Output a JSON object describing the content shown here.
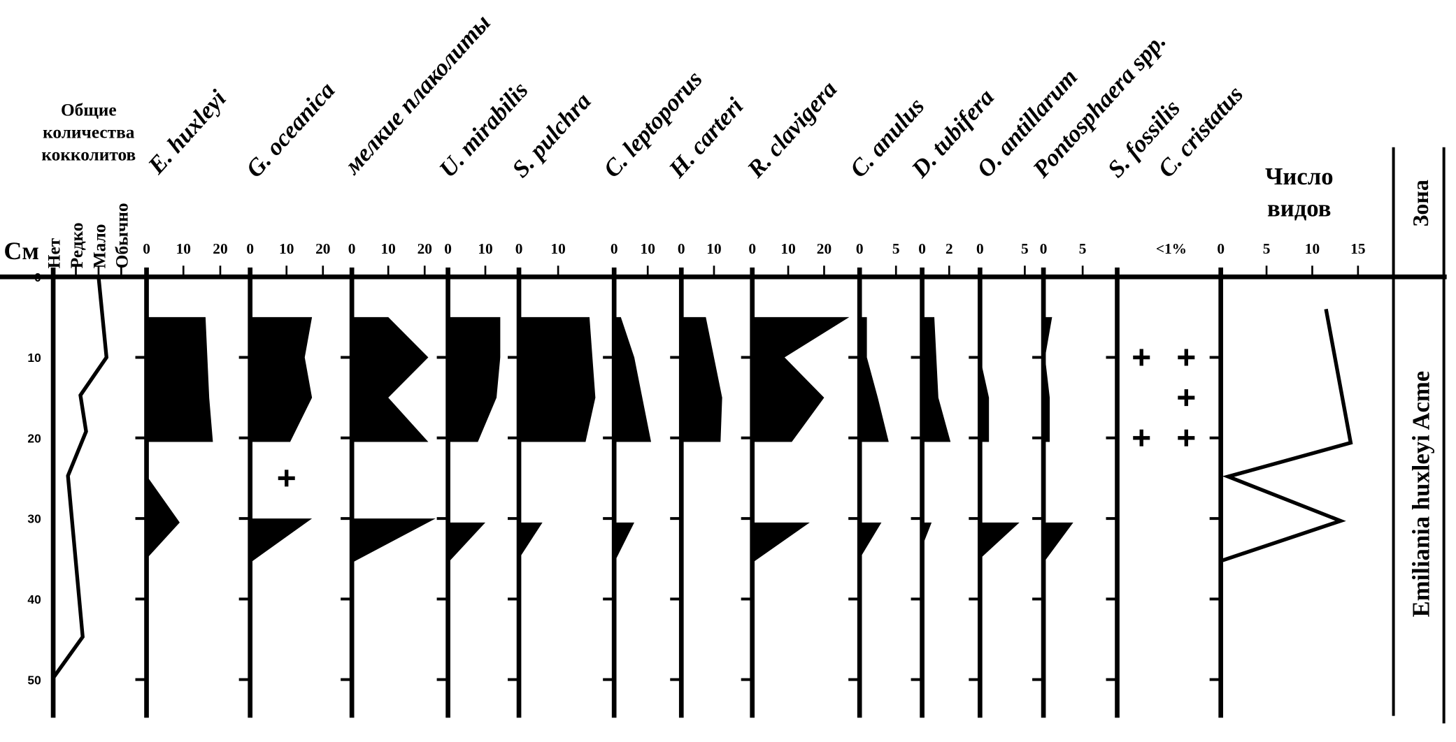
{
  "chart_data": {
    "type": "area",
    "ylabel": "См",
    "depth_ticks": [
      0,
      10,
      20,
      30,
      40,
      50
    ],
    "abundance": {
      "title": [
        "Общие",
        "количества",
        "кокколитов"
      ],
      "levels": [
        "Нет",
        "Редко",
        "Мало",
        "Обычно"
      ],
      "points": [
        [
          0,
          2.0
        ],
        [
          10,
          2.35
        ],
        [
          14.7,
          1.2
        ],
        [
          19.2,
          1.45
        ],
        [
          24.7,
          0.65
        ],
        [
          44.7,
          1.3
        ],
        [
          49.8,
          0
        ]
      ]
    },
    "taxa": [
      {
        "name": "E. huxleyi",
        "ticks": [
          0,
          10,
          20
        ],
        "segments": [
          [
            [
              5,
              16
            ],
            [
              15,
              17
            ],
            [
              20.5,
              18
            ]
          ],
          [
            [
              25,
              0.5
            ],
            [
              30.5,
              9
            ],
            [
              35,
              0
            ]
          ]
        ],
        "presence": []
      },
      {
        "name": "G. oceanica",
        "ticks": [
          0,
          10,
          20
        ],
        "segments": [
          [
            [
              5,
              17
            ],
            [
              10,
              15
            ],
            [
              15,
              17
            ],
            [
              20.5,
              11
            ]
          ],
          [
            [
              30,
              17
            ],
            [
              35.5,
              0
            ]
          ]
        ],
        "presence": [
          [
            25,
            10
          ]
        ]
      },
      {
        "name": "мелкие плаколиты",
        "ticks": [
          0,
          10,
          20
        ],
        "segments": [
          [
            [
              5,
              10
            ],
            [
              10,
              21
            ],
            [
              15,
              10
            ],
            [
              20.5,
              21
            ]
          ],
          [
            [
              30,
              23
            ],
            [
              35.5,
              0
            ]
          ]
        ],
        "presence": []
      },
      {
        "name": "U. mirabilis",
        "ticks": [
          0,
          10
        ],
        "segments": [
          [
            [
              5,
              14
            ],
            [
              10,
              14
            ],
            [
              15,
              13
            ],
            [
              20.5,
              8
            ]
          ],
          [
            [
              30.5,
              10
            ],
            [
              35.5,
              0
            ]
          ]
        ],
        "presence": []
      },
      {
        "name": "S. pulchra",
        "ticks": [
          0,
          10
        ],
        "segments": [
          [
            [
              5,
              18
            ],
            [
              15,
              19.5
            ],
            [
              20.5,
              17
            ]
          ],
          [
            [
              30.5,
              6
            ],
            [
              35,
              0
            ]
          ]
        ],
        "presence": []
      },
      {
        "name": "C. leptoporus",
        "ticks": [
          0,
          10
        ],
        "segments": [
          [
            [
              5,
              2
            ],
            [
              10,
              6
            ],
            [
              20.5,
              11
            ]
          ],
          [
            [
              30.5,
              6
            ],
            [
              35.5,
              0
            ]
          ]
        ],
        "presence": []
      },
      {
        "name": "H. carteri",
        "ticks": [
          0,
          10
        ],
        "segments": [
          [
            [
              5,
              7.5
            ],
            [
              15,
              12.5
            ],
            [
              20.5,
              12
            ]
          ]
        ],
        "presence": []
      },
      {
        "name": "R. clavigera",
        "ticks": [
          0,
          10,
          20
        ],
        "segments": [
          [
            [
              5,
              27
            ],
            [
              10,
              9
            ],
            [
              15,
              20
            ],
            [
              20.5,
              11
            ]
          ],
          [
            [
              30.5,
              16
            ],
            [
              35.5,
              0
            ]
          ]
        ],
        "presence": []
      },
      {
        "name": "C. anulus",
        "ticks": [
          0,
          5
        ],
        "segments": [
          [
            [
              5,
              1
            ],
            [
              10,
              1
            ],
            [
              15,
              2.5
            ],
            [
              20.5,
              4
            ]
          ],
          [
            [
              30.5,
              3
            ],
            [
              35,
              0
            ]
          ]
        ],
        "presence": []
      },
      {
        "name": "D. tubifera",
        "ticks": [
          0,
          2
        ],
        "segments": [
          [
            [
              5,
              0.9
            ],
            [
              15,
              1.2
            ],
            [
              20.5,
              2.1
            ]
          ],
          [
            [
              30.5,
              0.7
            ],
            [
              33.5,
              0
            ]
          ]
        ],
        "presence": []
      },
      {
        "name": "O. antillarum",
        "ticks": [
          0,
          5
        ],
        "segments": [
          [
            [
              10,
              0
            ],
            [
              15,
              1
            ],
            [
              20.5,
              1
            ]
          ],
          [
            [
              30.5,
              4.4
            ],
            [
              35,
              0
            ]
          ]
        ],
        "presence": []
      },
      {
        "name": "Pontosphaera spp.",
        "ticks": [
          0,
          5
        ],
        "segments": [
          [
            [
              5,
              1.1
            ],
            [
              10,
              0.2
            ],
            [
              15,
              0.8
            ],
            [
              20.5,
              0.8
            ]
          ],
          [
            [
              30.5,
              3.8
            ],
            [
              35.5,
              0
            ]
          ]
        ],
        "presence": []
      }
    ],
    "rare": {
      "label": "<1%",
      "taxa": [
        {
          "name": "S. fossilis",
          "presence": [
            10,
            20
          ]
        },
        {
          "name": "C. cristatus",
          "presence": [
            10,
            15,
            20
          ]
        }
      ]
    },
    "species_count": {
      "title": [
        "Число",
        "видов"
      ],
      "ticks": [
        0,
        5,
        10,
        15
      ],
      "points": [
        [
          4,
          11.5
        ],
        [
          20.6,
          14.2
        ],
        [
          24.8,
          0.8
        ],
        [
          30.3,
          13.1
        ],
        [
          35.2,
          0.2
        ]
      ]
    },
    "zone": {
      "header": "Зона",
      "name": "Emiliania huxleyi Acme"
    },
    "colors": {
      "ink": "#000000",
      "background": "#ffffff"
    }
  }
}
